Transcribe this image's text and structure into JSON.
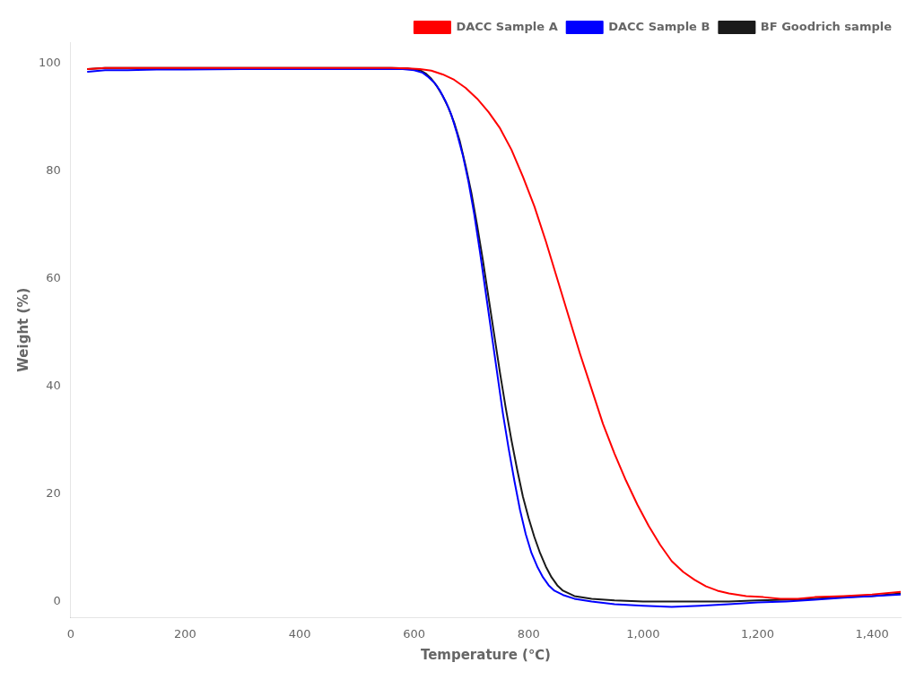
{
  "chart_data": {
    "type": "line",
    "xlabel": "Temperature (℃)",
    "ylabel": "Weight (%)",
    "xlim": [
      0,
      1450
    ],
    "ylim": [
      -3,
      104
    ],
    "xticks": [
      0,
      200,
      400,
      600,
      800,
      1000,
      1200,
      1400
    ],
    "yticks": [
      0,
      20,
      40,
      60,
      80,
      100
    ],
    "grid": false,
    "legend": "upper right",
    "series": [
      {
        "name": "DACC Sample A",
        "color": "#FF0000",
        "x": [
          30,
          60,
          100,
          150,
          200,
          300,
          400,
          500,
          560,
          590,
          610,
          630,
          650,
          670,
          690,
          710,
          730,
          750,
          770,
          790,
          810,
          830,
          850,
          870,
          890,
          910,
          930,
          950,
          970,
          990,
          1010,
          1030,
          1050,
          1070,
          1090,
          1110,
          1130,
          1150,
          1180,
          1210,
          1240,
          1270,
          1300,
          1350,
          1400,
          1450
        ],
        "values": [
          99.0,
          99.2,
          99.2,
          99.2,
          99.2,
          99.2,
          99.2,
          99.2,
          99.2,
          99.1,
          99.0,
          98.7,
          98.0,
          97.0,
          95.5,
          93.5,
          91.0,
          88.0,
          84.0,
          79.0,
          73.5,
          67.0,
          60.0,
          53.0,
          46.0,
          39.5,
          33.0,
          27.5,
          22.5,
          18.0,
          14.0,
          10.5,
          7.5,
          5.5,
          4.0,
          2.8,
          2.0,
          1.5,
          1.0,
          0.8,
          0.5,
          0.5,
          0.8,
          1.0,
          1.3,
          1.8
        ]
      },
      {
        "name": "DACC Sample B",
        "color": "#0000FF",
        "x": [
          30,
          60,
          100,
          150,
          200,
          300,
          400,
          500,
          550,
          580,
          600,
          615,
          625,
          635,
          645,
          655,
          665,
          675,
          685,
          695,
          705,
          715,
          725,
          735,
          745,
          755,
          765,
          775,
          785,
          795,
          805,
          815,
          825,
          835,
          845,
          860,
          880,
          910,
          950,
          1000,
          1050,
          1100,
          1150,
          1200,
          1250,
          1300,
          1350,
          1400,
          1450
        ],
        "values": [
          98.5,
          98.8,
          98.8,
          98.9,
          98.9,
          99.0,
          99.0,
          99.0,
          99.0,
          99.0,
          98.8,
          98.3,
          97.5,
          96.5,
          95.0,
          93.0,
          90.5,
          87.0,
          83.0,
          78.0,
          72.0,
          65.0,
          57.5,
          50.0,
          42.5,
          35.0,
          28.5,
          22.5,
          17.0,
          12.5,
          9.0,
          6.5,
          4.5,
          3.0,
          2.0,
          1.2,
          0.5,
          0.0,
          -0.5,
          -0.8,
          -1.0,
          -0.8,
          -0.5,
          -0.2,
          0.0,
          0.3,
          0.7,
          1.0,
          1.3
        ]
      },
      {
        "name": "BF Goodrich sample",
        "color": "#1a1a1a",
        "x": [
          30,
          60,
          100,
          150,
          200,
          300,
          400,
          500,
          560,
          590,
          610,
          620,
          630,
          640,
          650,
          660,
          670,
          680,
          690,
          700,
          710,
          720,
          730,
          740,
          750,
          760,
          770,
          780,
          790,
          800,
          810,
          820,
          830,
          840,
          850,
          860,
          880,
          910,
          950,
          1000,
          1050,
          1100,
          1150,
          1200,
          1250,
          1300,
          1350,
          1400,
          1450
        ],
        "values": [
          99.0,
          99.2,
          99.2,
          99.2,
          99.2,
          99.2,
          99.2,
          99.2,
          99.2,
          99.1,
          98.8,
          98.2,
          97.2,
          95.8,
          94.0,
          91.8,
          89.0,
          85.5,
          81.0,
          76.0,
          70.0,
          63.5,
          56.5,
          49.5,
          42.5,
          36.0,
          30.0,
          24.5,
          19.5,
          15.5,
          12.0,
          9.0,
          6.5,
          4.5,
          3.0,
          2.0,
          1.0,
          0.5,
          0.2,
          0.0,
          0.0,
          0.0,
          0.0,
          0.2,
          0.3,
          0.5,
          0.8,
          1.0,
          1.5
        ]
      }
    ]
  }
}
